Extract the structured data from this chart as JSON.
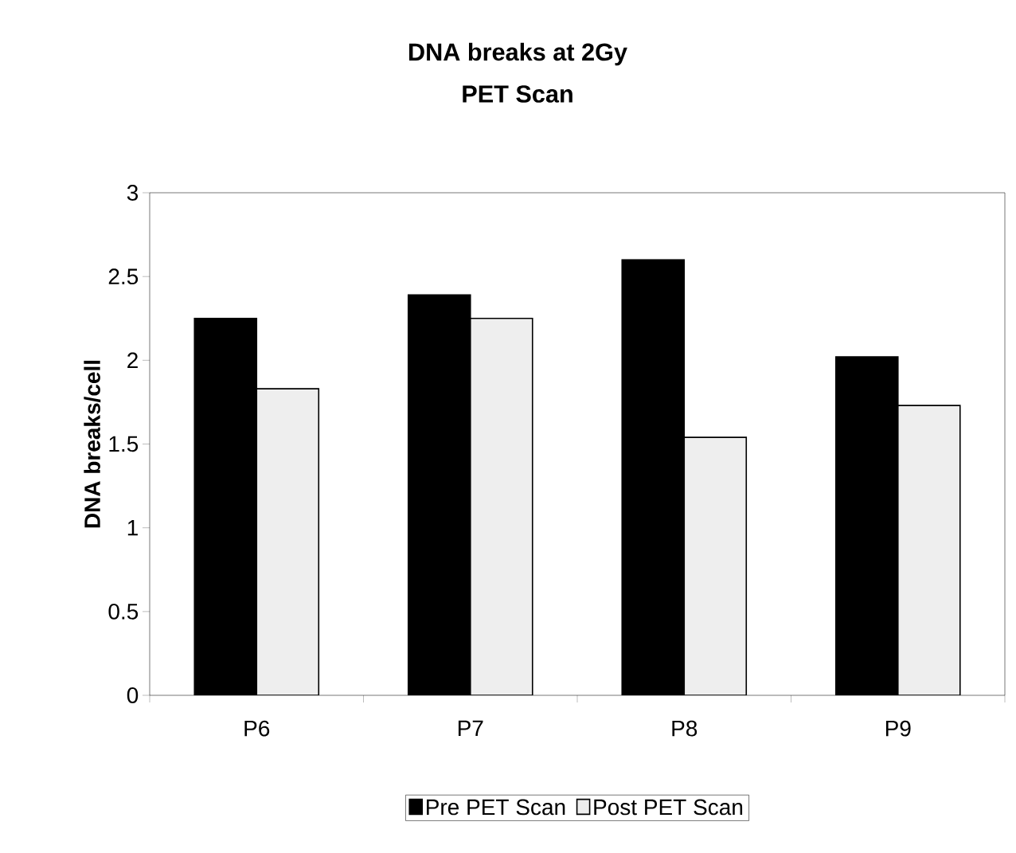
{
  "chart_data": {
    "type": "bar",
    "title": "DNA breaks at 2Gy",
    "subtitle": "PET Scan",
    "ylabel": "DNA breaks/cell",
    "categories": [
      "P6",
      "P7",
      "P8",
      "P9"
    ],
    "series": [
      {
        "name": "Pre PET Scan",
        "color": "#000000",
        "values": [
          2.25,
          2.39,
          2.6,
          2.02
        ]
      },
      {
        "name": "Post PET Scan",
        "color": "#eeeeee",
        "values": [
          1.83,
          2.25,
          1.54,
          1.73
        ]
      }
    ],
    "ylim": [
      0,
      3
    ],
    "yticks": [
      0,
      0.5,
      1,
      1.5,
      2,
      2.5,
      3
    ],
    "legend": "bottom"
  }
}
